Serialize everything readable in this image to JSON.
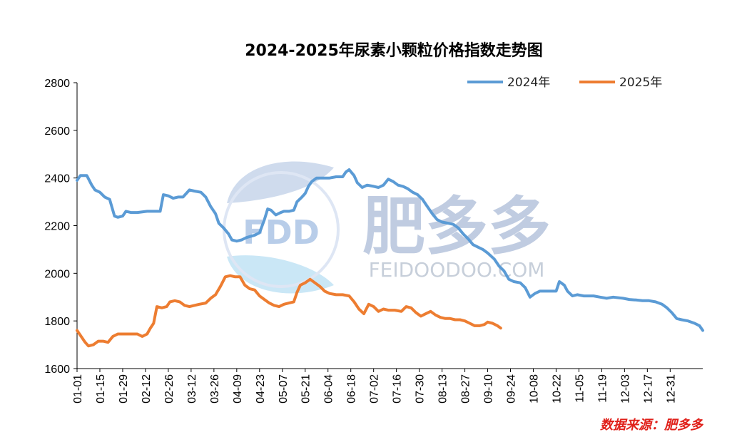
{
  "chart_data": {
    "type": "line",
    "title": "2024-2025年尿素小颗粒价格指数走势图",
    "xlabel": "",
    "ylabel": "",
    "ylim": [
      1600,
      2800
    ],
    "yticks": [
      1600,
      1800,
      2000,
      2200,
      2400,
      2600,
      2800
    ],
    "x_categories": [
      "01-01",
      "01-15",
      "01-29",
      "02-12",
      "02-26",
      "03-12",
      "03-26",
      "04-09",
      "04-23",
      "05-07",
      "05-21",
      "06-04",
      "06-18",
      "07-02",
      "07-16",
      "07-30",
      "08-13",
      "08-27",
      "09-10",
      "09-24",
      "10-08",
      "10-22",
      "11-05",
      "11-19",
      "12-03",
      "12-17",
      "12-31"
    ],
    "x_unit_note": "day of year",
    "legend_position": "top-right",
    "grid": false,
    "series": [
      {
        "name": "2024年",
        "color": "#5b9bd5",
        "points": [
          [
            1,
            2390
          ],
          [
            3,
            2410
          ],
          [
            7,
            2410
          ],
          [
            10,
            2370
          ],
          [
            12,
            2350
          ],
          [
            15,
            2340
          ],
          [
            18,
            2320
          ],
          [
            21,
            2310
          ],
          [
            24,
            2240
          ],
          [
            26,
            2235
          ],
          [
            29,
            2240
          ],
          [
            31,
            2260
          ],
          [
            34,
            2255
          ],
          [
            38,
            2255
          ],
          [
            44,
            2260
          ],
          [
            52,
            2260
          ],
          [
            54,
            2330
          ],
          [
            57,
            2325
          ],
          [
            60,
            2315
          ],
          [
            63,
            2320
          ],
          [
            66,
            2320
          ],
          [
            70,
            2350
          ],
          [
            73,
            2345
          ],
          [
            77,
            2340
          ],
          [
            80,
            2320
          ],
          [
            83,
            2280
          ],
          [
            86,
            2250
          ],
          [
            88,
            2210
          ],
          [
            91,
            2190
          ],
          [
            94,
            2165
          ],
          [
            96,
            2140
          ],
          [
            99,
            2135
          ],
          [
            102,
            2140
          ],
          [
            105,
            2150
          ],
          [
            110,
            2160
          ],
          [
            113,
            2170
          ],
          [
            116,
            2225
          ],
          [
            118,
            2270
          ],
          [
            120,
            2265
          ],
          [
            123,
            2245
          ],
          [
            126,
            2255
          ],
          [
            128,
            2260
          ],
          [
            131,
            2260
          ],
          [
            134,
            2265
          ],
          [
            136,
            2300
          ],
          [
            139,
            2320
          ],
          [
            141,
            2335
          ],
          [
            143,
            2365
          ],
          [
            145,
            2385
          ],
          [
            148,
            2400
          ],
          [
            152,
            2400
          ],
          [
            156,
            2400
          ],
          [
            160,
            2405
          ],
          [
            164,
            2405
          ],
          [
            166,
            2425
          ],
          [
            168,
            2435
          ],
          [
            171,
            2410
          ],
          [
            173,
            2380
          ],
          [
            176,
            2360
          ],
          [
            179,
            2370
          ],
          [
            183,
            2365
          ],
          [
            186,
            2360
          ],
          [
            189,
            2370
          ],
          [
            192,
            2395
          ],
          [
            195,
            2385
          ],
          [
            198,
            2370
          ],
          [
            201,
            2365
          ],
          [
            204,
            2355
          ],
          [
            207,
            2340
          ],
          [
            210,
            2330
          ],
          [
            213,
            2310
          ],
          [
            216,
            2280
          ],
          [
            219,
            2250
          ],
          [
            222,
            2225
          ],
          [
            225,
            2215
          ],
          [
            229,
            2210
          ],
          [
            232,
            2205
          ],
          [
            235,
            2190
          ],
          [
            238,
            2165
          ],
          [
            241,
            2145
          ],
          [
            244,
            2120
          ],
          [
            247,
            2110
          ],
          [
            250,
            2100
          ],
          [
            253,
            2085
          ],
          [
            257,
            2060
          ],
          [
            260,
            2030
          ],
          [
            263,
            2010
          ],
          [
            266,
            1975
          ],
          [
            269,
            1965
          ],
          [
            273,
            1960
          ],
          [
            276,
            1940
          ],
          [
            279,
            1900
          ],
          [
            282,
            1915
          ],
          [
            285,
            1925
          ],
          [
            290,
            1925
          ],
          [
            295,
            1925
          ],
          [
            297,
            1965
          ],
          [
            300,
            1950
          ],
          [
            302,
            1925
          ],
          [
            305,
            1905
          ],
          [
            308,
            1910
          ],
          [
            312,
            1905
          ],
          [
            318,
            1905
          ],
          [
            322,
            1900
          ],
          [
            326,
            1895
          ],
          [
            330,
            1900
          ],
          [
            336,
            1895
          ],
          [
            340,
            1890
          ],
          [
            344,
            1888
          ],
          [
            348,
            1885
          ],
          [
            352,
            1885
          ],
          [
            356,
            1880
          ],
          [
            360,
            1870
          ],
          [
            363,
            1855
          ],
          [
            366,
            1835
          ],
          [
            369,
            1810
          ],
          [
            372,
            1805
          ],
          [
            376,
            1800
          ],
          [
            380,
            1790
          ],
          [
            383,
            1780
          ],
          [
            385,
            1760
          ]
        ]
      },
      {
        "name": "2025年",
        "color": "#ed7d31",
        "points": [
          [
            1,
            1760
          ],
          [
            4,
            1730
          ],
          [
            6,
            1710
          ],
          [
            8,
            1695
          ],
          [
            11,
            1700
          ],
          [
            14,
            1715
          ],
          [
            17,
            1715
          ],
          [
            20,
            1710
          ],
          [
            23,
            1735
          ],
          [
            26,
            1745
          ],
          [
            30,
            1745
          ],
          [
            34,
            1745
          ],
          [
            38,
            1745
          ],
          [
            41,
            1735
          ],
          [
            44,
            1745
          ],
          [
            46,
            1770
          ],
          [
            48,
            1790
          ],
          [
            50,
            1860
          ],
          [
            53,
            1855
          ],
          [
            56,
            1860
          ],
          [
            58,
            1880
          ],
          [
            61,
            1885
          ],
          [
            64,
            1880
          ],
          [
            67,
            1865
          ],
          [
            70,
            1860
          ],
          [
            73,
            1865
          ],
          [
            76,
            1870
          ],
          [
            80,
            1875
          ],
          [
            83,
            1895
          ],
          [
            86,
            1910
          ],
          [
            89,
            1945
          ],
          [
            92,
            1985
          ],
          [
            95,
            1990
          ],
          [
            98,
            1985
          ],
          [
            101,
            1985
          ],
          [
            104,
            1950
          ],
          [
            107,
            1935
          ],
          [
            110,
            1930
          ],
          [
            113,
            1905
          ],
          [
            116,
            1890
          ],
          [
            119,
            1875
          ],
          [
            122,
            1865
          ],
          [
            125,
            1860
          ],
          [
            128,
            1870
          ],
          [
            131,
            1875
          ],
          [
            134,
            1880
          ],
          [
            136,
            1920
          ],
          [
            138,
            1950
          ],
          [
            141,
            1960
          ],
          [
            144,
            1975
          ],
          [
            147,
            1960
          ],
          [
            150,
            1945
          ],
          [
            153,
            1925
          ],
          [
            156,
            1915
          ],
          [
            160,
            1910
          ],
          [
            164,
            1910
          ],
          [
            168,
            1905
          ],
          [
            171,
            1880
          ],
          [
            174,
            1850
          ],
          [
            177,
            1830
          ],
          [
            180,
            1870
          ],
          [
            183,
            1860
          ],
          [
            186,
            1840
          ],
          [
            189,
            1850
          ],
          [
            192,
            1845
          ],
          [
            196,
            1845
          ],
          [
            200,
            1840
          ],
          [
            203,
            1860
          ],
          [
            206,
            1855
          ],
          [
            209,
            1835
          ],
          [
            212,
            1820
          ],
          [
            215,
            1830
          ],
          [
            218,
            1840
          ],
          [
            221,
            1825
          ],
          [
            224,
            1815
          ],
          [
            227,
            1810
          ],
          [
            230,
            1810
          ],
          [
            233,
            1805
          ],
          [
            236,
            1805
          ],
          [
            239,
            1800
          ],
          [
            242,
            1790
          ],
          [
            245,
            1780
          ],
          [
            248,
            1780
          ],
          [
            251,
            1785
          ],
          [
            253,
            1795
          ],
          [
            256,
            1790
          ],
          [
            259,
            1780
          ],
          [
            261,
            1770
          ]
        ]
      }
    ]
  },
  "legend": [
    {
      "label": "2024年",
      "color": "#5b9bd5"
    },
    {
      "label": "2025年",
      "color": "#ed7d31"
    }
  ],
  "watermark": {
    "logo_text": "FDD",
    "brand_cn": "肥多多",
    "brand_en": "FEIDOODOO.COM"
  },
  "source_text": "数据来源：肥多多"
}
